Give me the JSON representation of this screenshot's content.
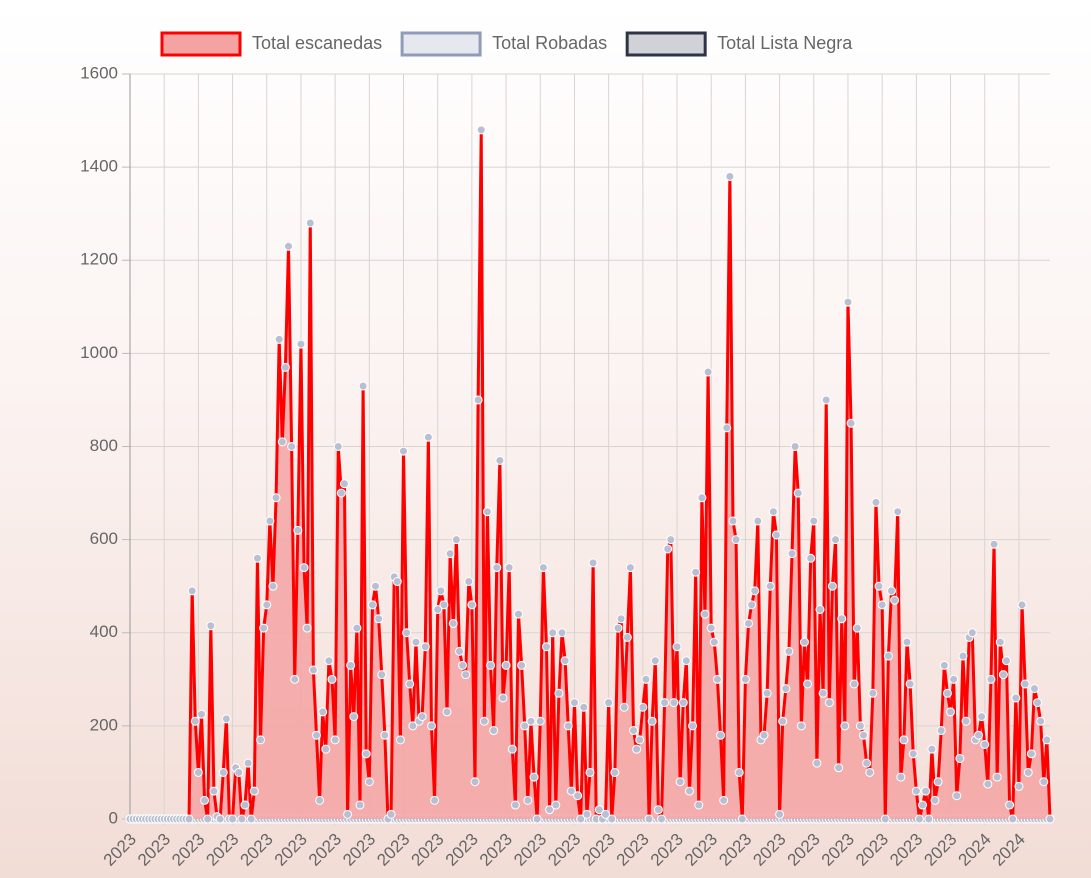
{
  "chart_data": {
    "type": "line",
    "categories": [
      "2023",
      null,
      null,
      null,
      null,
      null,
      null,
      null,
      null,
      null,
      null,
      "2023",
      null,
      null,
      null,
      null,
      null,
      null,
      null,
      null,
      null,
      null,
      "2023",
      null,
      null,
      null,
      null,
      null,
      null,
      null,
      null,
      null,
      null,
      "2023",
      null,
      null,
      null,
      null,
      null,
      null,
      null,
      null,
      null,
      null,
      "2023",
      null,
      null,
      null,
      null,
      null,
      null,
      null,
      null,
      null,
      null,
      "2023",
      null,
      null,
      null,
      null,
      null,
      null,
      null,
      null,
      null,
      null,
      "2023",
      null,
      null,
      null,
      null,
      null,
      null,
      null,
      null,
      null,
      null,
      "2023",
      null,
      null,
      null,
      null,
      null,
      null,
      null,
      null,
      null,
      null,
      "2023",
      null,
      null,
      null,
      null,
      null,
      null,
      null,
      null,
      null,
      null,
      "2023",
      null,
      null,
      null,
      null,
      null,
      null,
      null,
      null,
      null,
      null,
      "2023",
      null,
      null,
      null,
      null,
      null,
      null,
      null,
      null,
      null,
      null,
      "2023",
      null,
      null,
      null,
      null,
      null,
      null,
      null,
      null,
      null,
      null,
      "2023",
      null,
      null,
      null,
      null,
      null,
      null,
      null,
      null,
      null,
      null,
      "2023",
      null,
      null,
      null,
      null,
      null,
      null,
      null,
      null,
      null,
      null,
      "2023",
      null,
      null,
      null,
      null,
      null,
      null,
      null,
      null,
      null,
      null,
      "2023",
      null,
      null,
      null,
      null,
      null,
      null,
      null,
      null,
      null,
      null,
      "2023",
      null,
      null,
      null,
      null,
      null,
      null,
      null,
      null,
      null,
      null,
      "2023",
      null,
      null,
      null,
      null,
      null,
      null,
      null,
      null,
      null,
      null,
      "2023",
      null,
      null,
      null,
      null,
      null,
      null,
      null,
      null,
      null,
      null,
      "2023",
      null,
      null,
      null,
      null,
      null,
      null,
      null,
      null,
      null,
      null,
      "2023",
      null,
      null,
      null,
      null,
      null,
      null,
      null,
      null,
      null,
      null,
      "2023",
      null,
      null,
      null,
      null,
      null,
      null,
      null,
      null,
      null,
      null,
      "2023",
      null,
      null,
      null,
      null,
      null,
      null,
      null,
      null,
      null,
      null,
      "2023",
      null,
      null,
      null,
      null,
      null,
      null,
      null,
      null,
      null,
      null,
      "2023",
      null,
      null,
      null,
      null,
      null,
      null,
      null,
      null,
      null,
      null,
      "2024",
      null,
      null,
      null,
      null,
      null,
      null,
      null,
      null,
      null,
      null,
      "2024",
      null,
      null,
      null,
      null,
      null,
      null,
      null,
      null,
      null,
      null
    ],
    "series": [
      {
        "name": "Total escanedas",
        "color": "#ff0000",
        "fill": "#f4a3a3",
        "values": [
          0,
          0,
          0,
          0,
          0,
          0,
          0,
          0,
          0,
          0,
          0,
          0,
          0,
          0,
          0,
          0,
          0,
          0,
          0,
          0,
          490,
          210,
          100,
          225,
          40,
          0,
          415,
          60,
          5,
          0,
          100,
          215,
          0,
          0,
          110,
          100,
          0,
          30,
          120,
          0,
          60,
          560,
          170,
          410,
          460,
          640,
          500,
          690,
          1030,
          810,
          970,
          1230,
          800,
          300,
          620,
          1020,
          540,
          410,
          1280,
          320,
          180,
          40,
          230,
          150,
          340,
          300,
          170,
          800,
          700,
          720,
          10,
          330,
          220,
          410,
          30,
          930,
          140,
          80,
          460,
          500,
          430,
          310,
          180,
          0,
          10,
          520,
          510,
          170,
          790,
          400,
          290,
          200,
          380,
          210,
          220,
          370,
          820,
          200,
          40,
          450,
          490,
          460,
          230,
          570,
          420,
          600,
          360,
          330,
          310,
          510,
          460,
          80,
          900,
          1480,
          210,
          660,
          330,
          190,
          540,
          770,
          260,
          330,
          540,
          150,
          30,
          440,
          330,
          200,
          40,
          210,
          90,
          0,
          210,
          540,
          370,
          20,
          400,
          30,
          270,
          400,
          340,
          200,
          60,
          250,
          50,
          0,
          240,
          10,
          100,
          550,
          0,
          20,
          0,
          10,
          250,
          0,
          100,
          410,
          430,
          240,
          390,
          540,
          190,
          150,
          170,
          240,
          300,
          0,
          210,
          340,
          20,
          0,
          250,
          580,
          600,
          250,
          370,
          80,
          250,
          340,
          60,
          200,
          530,
          30,
          690,
          440,
          960,
          410,
          380,
          300,
          180,
          40,
          840,
          1380,
          640,
          600,
          100,
          0,
          300,
          420,
          460,
          490,
          640,
          170,
          180,
          270,
          500,
          660,
          610,
          10,
          210,
          280,
          360,
          570,
          800,
          700,
          200,
          380,
          290,
          560,
          640,
          120,
          450,
          270,
          900,
          250,
          500,
          600,
          110,
          430,
          200,
          1110,
          850,
          290,
          410,
          200,
          180,
          120,
          100,
          270,
          680,
          500,
          460,
          0,
          350,
          490,
          470,
          660,
          90,
          170,
          380,
          290,
          140,
          60,
          0,
          30,
          60,
          0,
          150,
          40,
          80,
          190,
          330,
          270,
          230,
          300,
          50,
          130,
          350,
          210,
          390,
          400,
          170,
          180,
          220,
          160,
          75,
          300,
          590,
          90,
          380,
          310,
          340,
          30,
          0,
          260,
          70,
          460,
          290,
          100,
          140,
          280,
          250,
          210,
          80,
          170,
          0
        ]
      },
      {
        "name": "Total Robadas",
        "color": "#8f9bb8",
        "fill": "#e6e8ef",
        "values": [
          0,
          0,
          0,
          0,
          0,
          0,
          0,
          0,
          0,
          0,
          0,
          0,
          0,
          0,
          0,
          0,
          0,
          0,
          0,
          0,
          0,
          0,
          0,
          0,
          0,
          0,
          0,
          0,
          0,
          0,
          0,
          0,
          0,
          0,
          0,
          0,
          0,
          0,
          0,
          0,
          0,
          0,
          0,
          0,
          0,
          0,
          0,
          0,
          0,
          0,
          0,
          0,
          0,
          0,
          0,
          0,
          0,
          0,
          0,
          0,
          0,
          0,
          0,
          0,
          0,
          0,
          0,
          0,
          0,
          0,
          0,
          0,
          0,
          0,
          0,
          0,
          0,
          0,
          0,
          0,
          0,
          0,
          0,
          0,
          0,
          0,
          0,
          0,
          0,
          0,
          0,
          0,
          0,
          0,
          0,
          0,
          0,
          0,
          0,
          0,
          0,
          0,
          0,
          0,
          0,
          0,
          0,
          0,
          0,
          0,
          0,
          0,
          0,
          0,
          0,
          0,
          0,
          0,
          0,
          0,
          0,
          0,
          0,
          0,
          0,
          0,
          0,
          0,
          0,
          0,
          0,
          0,
          0,
          0,
          0,
          0,
          0,
          0,
          0,
          0,
          0,
          0,
          0,
          0,
          0,
          0,
          0,
          0,
          0,
          0,
          0,
          0,
          0,
          0,
          0,
          0,
          0,
          0,
          0,
          0,
          0,
          0,
          0,
          0,
          0,
          0,
          0,
          0,
          0,
          0,
          0,
          0,
          0,
          0,
          0,
          0,
          0,
          0,
          0,
          0,
          0,
          0,
          0,
          0,
          0,
          0,
          0,
          0,
          0,
          0,
          0,
          0,
          0,
          0,
          0,
          0,
          0,
          0,
          0,
          0,
          0,
          0,
          0,
          0,
          0,
          0,
          0,
          0,
          0,
          0,
          0,
          0,
          0,
          0,
          0,
          0,
          0,
          0,
          0,
          0,
          0,
          0,
          0,
          0,
          0,
          0,
          0,
          0,
          0,
          0,
          0,
          0,
          0,
          0,
          0,
          0,
          0,
          0,
          0,
          0,
          0,
          0,
          0,
          0,
          0,
          0,
          0,
          0,
          0,
          0,
          0,
          0,
          0,
          0,
          0,
          0,
          0,
          0,
          0,
          0,
          0,
          0,
          0,
          0,
          0,
          0,
          0,
          0,
          0,
          0,
          0,
          0,
          0,
          0,
          0,
          0,
          0,
          0,
          0,
          0,
          0,
          0,
          0,
          0,
          0,
          0,
          0,
          0,
          0,
          0,
          0,
          0,
          0,
          0,
          0,
          0,
          0
        ]
      },
      {
        "name": "Total Lista Negra",
        "color": "#2e3446",
        "fill": "#d0d2d8",
        "values": [
          0,
          0,
          0,
          0,
          0,
          0,
          0,
          0,
          0,
          0,
          0,
          0,
          0,
          0,
          0,
          0,
          0,
          0,
          0,
          0,
          0,
          0,
          0,
          0,
          0,
          0,
          0,
          0,
          0,
          0,
          0,
          0,
          0,
          0,
          0,
          0,
          0,
          0,
          0,
          0,
          0,
          0,
          0,
          0,
          0,
          0,
          0,
          0,
          0,
          0,
          0,
          0,
          0,
          0,
          0,
          0,
          0,
          0,
          0,
          0,
          0,
          0,
          0,
          0,
          0,
          0,
          0,
          0,
          0,
          0,
          0,
          0,
          0,
          0,
          0,
          0,
          0,
          0,
          0,
          0,
          0,
          0,
          0,
          0,
          0,
          0,
          0,
          0,
          0,
          0,
          0,
          0,
          0,
          0,
          0,
          0,
          0,
          0,
          0,
          0,
          0,
          0,
          0,
          0,
          0,
          0,
          0,
          0,
          0,
          0,
          0,
          0,
          0,
          0,
          0,
          0,
          0,
          0,
          0,
          0,
          0,
          0,
          0,
          0,
          0,
          0,
          0,
          0,
          0,
          0,
          0,
          0,
          0,
          0,
          0,
          0,
          0,
          0,
          0,
          0,
          0,
          0,
          0,
          0,
          0,
          0,
          0,
          0,
          0,
          0,
          0,
          0,
          0,
          0,
          0,
          0,
          0,
          0,
          0,
          0,
          0,
          0,
          0,
          0,
          0,
          0,
          0,
          0,
          0,
          0,
          0,
          0,
          0,
          0,
          0,
          0,
          0,
          0,
          0,
          0,
          0,
          0,
          0,
          0,
          0,
          0,
          0,
          0,
          0,
          0,
          0,
          0,
          0,
          0,
          0,
          0,
          0,
          0,
          0,
          0,
          0,
          0,
          0,
          0,
          0,
          0,
          0,
          0,
          0,
          0,
          0,
          0,
          0,
          0,
          0,
          0,
          0,
          0,
          0,
          0,
          0,
          0,
          0,
          0,
          0,
          0,
          0,
          0,
          0,
          0,
          0,
          0,
          0,
          0,
          0,
          0,
          0,
          0,
          0,
          0,
          0,
          0,
          0,
          0,
          0,
          0,
          0,
          0,
          0,
          0,
          0,
          0,
          0,
          0,
          0,
          0,
          0,
          0,
          0,
          0,
          0,
          0,
          0,
          0,
          0,
          0,
          0,
          0,
          0,
          0,
          0,
          0,
          0,
          0,
          0,
          0,
          0,
          0,
          0,
          0,
          0,
          0,
          0,
          0,
          0,
          0,
          0,
          0,
          0,
          0,
          0,
          0,
          0,
          0,
          0,
          0,
          0
        ]
      }
    ],
    "ylim": [
      0,
      1600
    ],
    "yticks": [
      0,
      200,
      400,
      600,
      800,
      1000,
      1200,
      1400,
      1600
    ],
    "grid": true,
    "legend": "top"
  }
}
